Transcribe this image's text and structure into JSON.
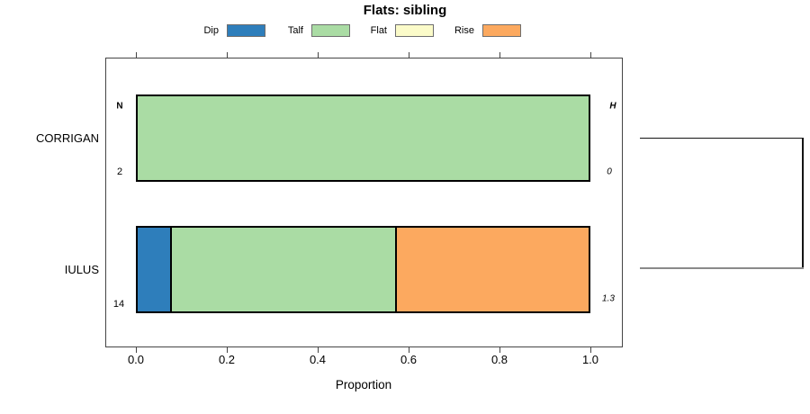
{
  "title": "Flats: sibling",
  "axes": {
    "x_label": "Proportion",
    "x_tick_labels": [
      "0.0",
      "0.2",
      "0.4",
      "0.6",
      "0.8",
      "1.0"
    ]
  },
  "chart_data": {
    "type": "bar",
    "orientation": "horizontal",
    "stacked": true,
    "title": "Flats: sibling",
    "xlabel": "Proportion",
    "xlim": [
      0,
      1
    ],
    "x_ticks": [
      0.0,
      0.2,
      0.4,
      0.6,
      0.8,
      1.0
    ],
    "grid": false,
    "legend_position": "top",
    "categories": [
      "CORRIGAN",
      "IULUS"
    ],
    "series": [
      {
        "name": "Dip",
        "color": "#2E7EBB",
        "values": [
          0,
          0.0714
        ]
      },
      {
        "name": "Talf",
        "color": "#AADCA4",
        "values": [
          1.0,
          0.5
        ]
      },
      {
        "name": "Flat",
        "color": "#FBFBC9",
        "values": [
          0,
          0
        ]
      },
      {
        "name": "Rise",
        "color": "#FCA95F",
        "values": [
          0,
          0.4286
        ]
      }
    ],
    "annotations": {
      "n_header": "N",
      "h_header": "H",
      "n_values": [
        "2",
        "14"
      ],
      "h_values": [
        "0",
        "1.3"
      ]
    },
    "right_margin_bracket": {
      "connects": [
        "CORRIGAN",
        "IULUS"
      ],
      "top_line_color": "#141414",
      "bottom_line_color": "#8a8a8a"
    }
  }
}
